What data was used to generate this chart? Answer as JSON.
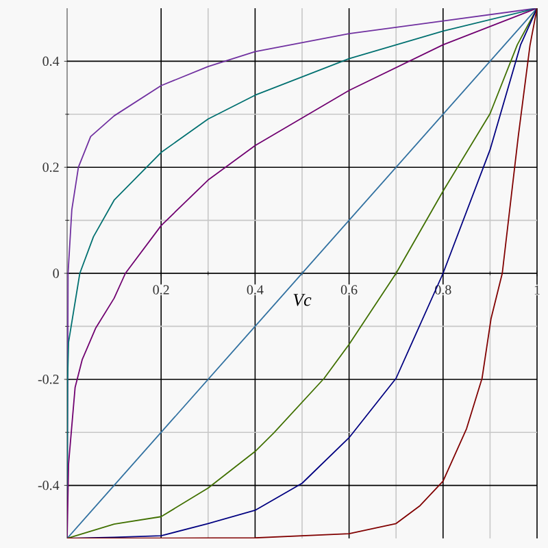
{
  "chart_data": {
    "type": "line",
    "xlabel": "*Vc*",
    "xlim": [
      0,
      1
    ],
    "ylim": [
      -0.5,
      0.5
    ],
    "xticks": [
      0.2,
      0.4,
      0.6,
      0.8,
      1
    ],
    "yticks": [
      -0.4,
      -0.2,
      0,
      0.2,
      0.4
    ],
    "grid": true,
    "marker": "none",
    "line_style": "solid",
    "series": [
      {
        "color": "#7030a0",
        "x": [
          0,
          0.002,
          0.01,
          0.024,
          0.05,
          0.1,
          0.2,
          0.3,
          0.4,
          0.6,
          0.8,
          1
        ],
        "values": [
          -0.5,
          0,
          0.12,
          0.2,
          0.258,
          0.297,
          0.354,
          0.39,
          0.418,
          0.452,
          0.476,
          0.5
        ]
      },
      {
        "color": "#007070",
        "x": [
          0,
          0.001,
          0.003,
          0.027,
          0.056,
          0.1,
          0.2,
          0.3,
          0.4,
          0.6,
          0.8,
          1
        ],
        "values": [
          -0.5,
          -0.2,
          -0.13,
          0,
          0.069,
          0.138,
          0.228,
          0.291,
          0.336,
          0.405,
          0.457,
          0.5
        ]
      },
      {
        "color": "#700070",
        "x": [
          0,
          0.003,
          0.017,
          0.032,
          0.061,
          0.1,
          0.124,
          0.2,
          0.3,
          0.4,
          0.6,
          0.8,
          1
        ],
        "values": [
          -0.5,
          -0.36,
          -0.215,
          -0.163,
          -0.103,
          -0.047,
          0,
          0.09,
          0.176,
          0.241,
          0.345,
          0.431,
          0.5
        ]
      },
      {
        "color": "#3070a0",
        "x": [
          0,
          1
        ],
        "values": [
          -0.5,
          0.5
        ]
      },
      {
        "color": "#407000",
        "x": [
          0,
          0.1,
          0.2,
          0.3,
          0.4,
          0.44,
          0.547,
          0.6,
          0.7,
          0.8,
          0.9,
          0.958,
          1
        ],
        "values": [
          -0.5,
          -0.473,
          -0.459,
          -0.405,
          -0.336,
          -0.301,
          -0.198,
          -0.134,
          0,
          0.155,
          0.301,
          0.431,
          0.5
        ]
      },
      {
        "color": "#000080",
        "x": [
          0,
          0.1,
          0.2,
          0.3,
          0.4,
          0.5,
          0.6,
          0.7,
          0.8,
          0.9,
          0.965,
          1
        ],
        "values": [
          -0.5,
          -0.498,
          -0.495,
          -0.472,
          -0.447,
          -0.396,
          -0.31,
          -0.198,
          0,
          0.233,
          0.431,
          0.5
        ]
      },
      {
        "color": "#800000",
        "x": [
          0,
          0.4,
          0.6,
          0.7,
          0.75,
          0.8,
          0.85,
          0.883,
          0.902,
          0.926,
          0.96,
          0.985,
          1
        ],
        "values": [
          -0.5,
          -0.499,
          -0.491,
          -0.472,
          -0.439,
          -0.392,
          -0.293,
          -0.198,
          -0.086,
          0,
          0.258,
          0.43,
          0.5
        ]
      }
    ]
  }
}
